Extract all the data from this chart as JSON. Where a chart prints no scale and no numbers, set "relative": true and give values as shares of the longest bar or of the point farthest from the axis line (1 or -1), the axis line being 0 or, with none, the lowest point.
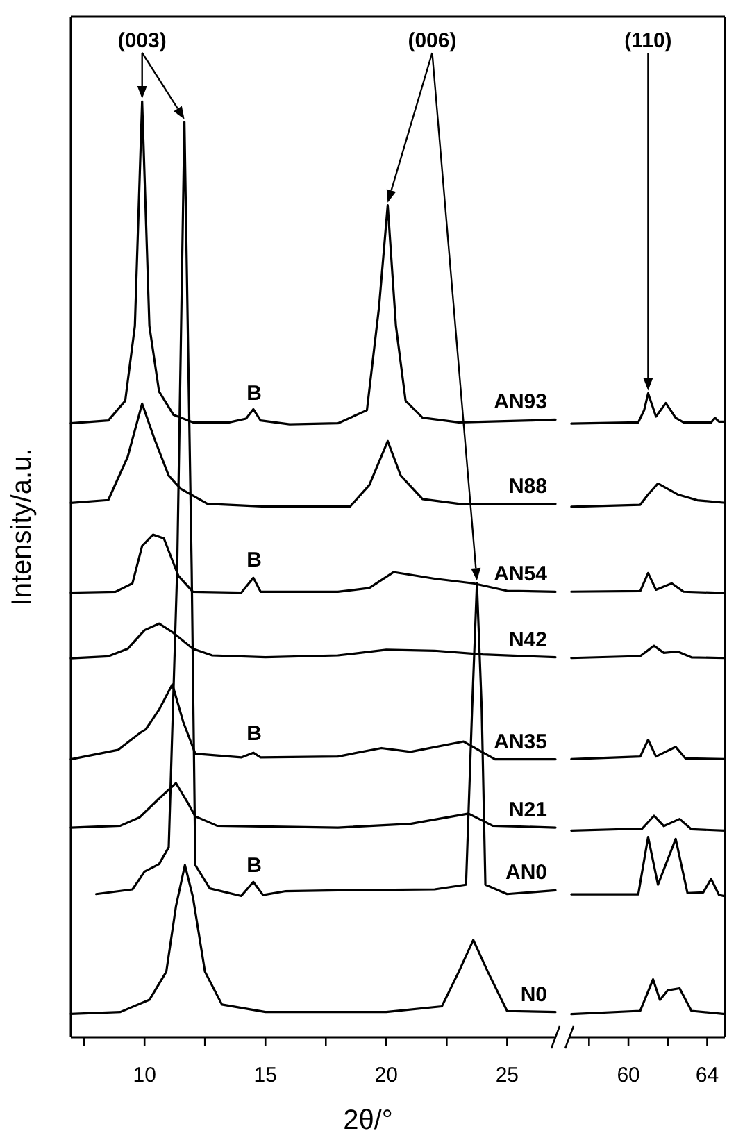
{
  "chart_data": [
    {
      "type": "line",
      "relative": true,
      "xlabel": "2θ/°",
      "ylabel": "Intensity/a.u.",
      "xlim": [
        6.95,
        27
      ],
      "xticks": [
        {
          "value": 7.5,
          "label": null
        },
        10,
        {
          "value": 12.5,
          "label": null
        },
        15,
        {
          "value": 17.5,
          "label": null
        },
        20,
        {
          "value": 22.5,
          "label": null
        },
        25
      ],
      "marker": "none",
      "line_style": "solid",
      "annotations": [
        "(003)",
        "(006)",
        "B",
        "B",
        "B",
        "B"
      ],
      "series": [
        {
          "name": "AN93",
          "color": "#000000",
          "x": [
            6.95,
            8.5,
            9.2,
            9.6,
            9.9,
            10.2,
            10.6,
            11.2,
            12,
            13.5,
            14.2,
            14.5,
            14.8,
            16,
            18,
            19.2,
            19.7,
            20.06,
            20.4,
            20.8,
            21.5,
            23,
            26,
            27
          ],
          "values": [
            0.656,
            0.659,
            0.68,
            0.76,
            1.0,
            0.76,
            0.69,
            0.665,
            0.657,
            0.657,
            0.661,
            0.671,
            0.659,
            0.655,
            0.656,
            0.67,
            0.78,
            0.889,
            0.76,
            0.68,
            0.662,
            0.657,
            0.659,
            0.66
          ]
        },
        {
          "name": "N88",
          "color": "#000000",
          "x": [
            6.95,
            8.5,
            9.3,
            9.9,
            10.4,
            11,
            11.5,
            12.6,
            15,
            18.5,
            19.3,
            20.06,
            20.6,
            21.5,
            23,
            27
          ],
          "values": [
            0.571,
            0.574,
            0.62,
            0.677,
            0.64,
            0.6,
            0.586,
            0.57,
            0.567,
            0.567,
            0.59,
            0.637,
            0.6,
            0.575,
            0.57,
            0.57
          ]
        },
        {
          "name": "AN54",
          "color": "#000000",
          "x": [
            6.95,
            8.8,
            9.5,
            9.9,
            10.35,
            10.8,
            11.4,
            12,
            14,
            14.5,
            14.8,
            18,
            19.3,
            20.3,
            22,
            23.6,
            25,
            27
          ],
          "values": [
            0.475,
            0.476,
            0.485,
            0.525,
            0.537,
            0.533,
            0.493,
            0.476,
            0.475,
            0.491,
            0.476,
            0.476,
            0.48,
            0.497,
            0.49,
            0.485,
            0.477,
            0.476
          ]
        },
        {
          "name": "N42",
          "color": "#000000",
          "x": [
            6.95,
            8.5,
            9.3,
            10,
            10.6,
            11.2,
            12,
            12.8,
            15,
            18,
            20,
            22,
            24,
            27
          ],
          "values": [
            0.405,
            0.407,
            0.415,
            0.435,
            0.442,
            0.432,
            0.415,
            0.408,
            0.406,
            0.408,
            0.414,
            0.413,
            0.409,
            0.406
          ]
        },
        {
          "name": "AN35",
          "color": "#000000",
          "x": [
            6.95,
            8.9,
            9.8,
            10.05,
            10.6,
            11.15,
            11.6,
            12.1,
            14,
            14.5,
            14.8,
            18,
            19.8,
            21,
            23.2,
            24.5,
            27
          ],
          "values": [
            0.297,
            0.307,
            0.325,
            0.329,
            0.35,
            0.377,
            0.337,
            0.303,
            0.299,
            0.304,
            0.299,
            0.3,
            0.309,
            0.305,
            0.316,
            0.297,
            0.297
          ]
        },
        {
          "name": "N21",
          "color": "#000000",
          "x": [
            6.95,
            9,
            9.8,
            10.6,
            11.3,
            11.8,
            12.1,
            13,
            18,
            21,
            23.4,
            24.4,
            27
          ],
          "values": [
            0.224,
            0.226,
            0.235,
            0.255,
            0.2715,
            0.25,
            0.236,
            0.226,
            0.224,
            0.228,
            0.239,
            0.226,
            0.224
          ]
        },
        {
          "name": "AN0",
          "color": "#000000",
          "x": [
            8.0,
            9.5,
            10.0,
            10.6,
            11.0,
            11.35,
            11.65,
            11.95,
            12.1,
            12.7,
            14.0,
            14.5,
            14.9,
            15.8,
            18,
            22,
            23.3,
            23.55,
            23.75,
            23.95,
            24.1,
            25,
            27
          ],
          "values": [
            0.153,
            0.158,
            0.177,
            0.185,
            0.203,
            0.5,
            0.978,
            0.5,
            0.184,
            0.159,
            0.151,
            0.166,
            0.152,
            0.156,
            0.157,
            0.158,
            0.163,
            0.35,
            0.485,
            0.35,
            0.163,
            0.153,
            0.157
          ]
        },
        {
          "name": "N0",
          "color": "#000000",
          "x": [
            6.95,
            9,
            10.2,
            10.9,
            11.3,
            11.67,
            12.0,
            12.5,
            13.2,
            15,
            20,
            22.3,
            23.0,
            23.6,
            24.2,
            25,
            27
          ],
          "values": [
            0.025,
            0.027,
            0.04,
            0.07,
            0.14,
            0.184,
            0.15,
            0.07,
            0.035,
            0.027,
            0.027,
            0.033,
            0.07,
            0.104,
            0.07,
            0.028,
            0.027
          ]
        }
      ]
    },
    {
      "type": "line",
      "relative": true,
      "xlim": [
        57,
        64.9
      ],
      "tick_labels": "x",
      "xticks": [
        {
          "value": 58,
          "label": null
        },
        60,
        {
          "value": 62,
          "label": null
        },
        64
      ],
      "marker": "none",
      "line_style": "solid",
      "annotations": [
        "(110)"
      ],
      "series": [
        {
          "color": "#000000",
          "x": [
            57.1,
            60.5,
            60.8,
            61.0,
            61.4,
            61.9,
            62.4,
            62.8,
            64.2,
            64.4,
            64.6,
            64.9
          ],
          "values": [
            0.953,
            0.955,
            0.974,
            1.0,
            0.964,
            0.985,
            0.962,
            0.955,
            0.955,
            0.962,
            0.956,
            0.956
          ]
        },
        {
          "color": "#000000",
          "x": [
            57.1,
            60.6,
            61.0,
            61.5,
            62.5,
            63.5,
            64.9
          ],
          "values": [
            0.824,
            0.827,
            0.843,
            0.86,
            0.843,
            0.834,
            0.83
          ]
        },
        {
          "color": "#000000",
          "x": [
            57.1,
            60.6,
            61.0,
            61.4,
            62.2,
            62.8,
            64.9
          ],
          "values": [
            0.692,
            0.693,
            0.721,
            0.695,
            0.705,
            0.692,
            0.69
          ]
        },
        {
          "color": "#000000",
          "x": [
            57.1,
            60.6,
            61.3,
            61.8,
            62.5,
            63.2,
            64.9
          ],
          "values": [
            0.589,
            0.592,
            0.608,
            0.597,
            0.599,
            0.59,
            0.589
          ]
        },
        {
          "color": "#000000",
          "x": [
            57.1,
            60.6,
            61.0,
            61.4,
            62.4,
            62.9,
            64.9
          ],
          "values": [
            0.432,
            0.436,
            0.462,
            0.436,
            0.451,
            0.433,
            0.432
          ]
        },
        {
          "color": "#000000",
          "x": [
            57.1,
            60.7,
            61.3,
            61.8,
            62.6,
            63.2,
            64.9
          ],
          "values": [
            0.321,
            0.324,
            0.344,
            0.328,
            0.339,
            0.323,
            0.321
          ]
        },
        {
          "color": "#000000",
          "x": [
            57.1,
            60.5,
            61.0,
            61.5,
            62.4,
            63.0,
            63.8,
            64.2,
            64.6,
            64.9
          ],
          "values": [
            0.222,
            0.222,
            0.311,
            0.237,
            0.308,
            0.224,
            0.225,
            0.246,
            0.221,
            0.219
          ]
        },
        {
          "color": "#000000",
          "x": [
            57.1,
            60.6,
            61.25,
            61.6,
            62.0,
            62.6,
            63.2,
            64.9
          ],
          "values": [
            0.036,
            0.041,
            0.09,
            0.058,
            0.073,
            0.076,
            0.041,
            0.036
          ]
        }
      ]
    }
  ]
}
